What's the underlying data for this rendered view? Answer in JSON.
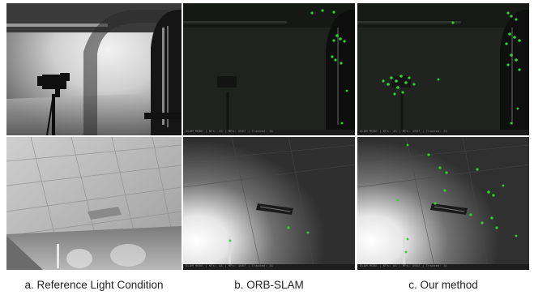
{
  "figure": {
    "captions": {
      "col_a": "a. Reference Light Condition",
      "col_b": "b. ORB-SLAM",
      "col_c": "c. Our method"
    },
    "feature_color": "#2bd62b",
    "statusbar_text": "SLAM MODE | KFs: 43 | MPs: 1507 | Tracked: 31"
  }
}
